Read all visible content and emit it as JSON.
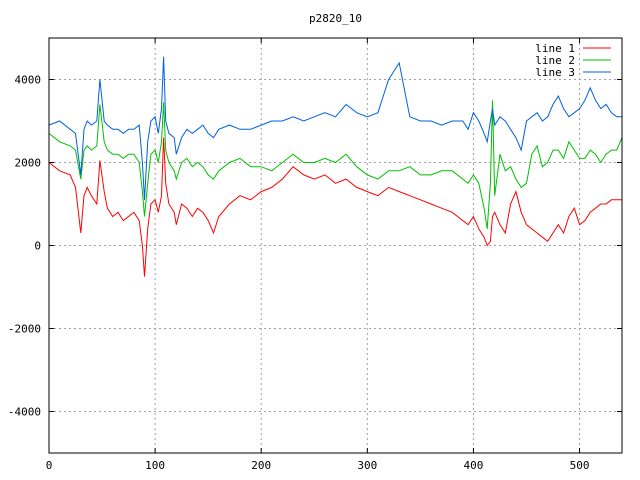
{
  "chart_data": {
    "type": "line",
    "title": "p2820_10",
    "xlabel": "",
    "ylabel": "",
    "xlim": [
      0,
      540
    ],
    "ylim": [
      -5000,
      5000
    ],
    "xticks": [
      0,
      100,
      200,
      300,
      400,
      500
    ],
    "yticks": [
      -4000,
      -2000,
      0,
      2000,
      4000
    ],
    "grid": true,
    "legend_position": "top-right",
    "series": [
      {
        "name": "line 1",
        "color": "#ff0000",
        "x": [
          0,
          10,
          20,
          25,
          30,
          33,
          36,
          40,
          45,
          48,
          52,
          55,
          60,
          65,
          70,
          75,
          80,
          85,
          88,
          90,
          93,
          96,
          100,
          103,
          106,
          108,
          110,
          113,
          118,
          120,
          125,
          130,
          135,
          140,
          145,
          150,
          155,
          160,
          170,
          180,
          190,
          200,
          210,
          220,
          230,
          240,
          250,
          260,
          270,
          280,
          290,
          300,
          310,
          320,
          330,
          340,
          350,
          360,
          370,
          380,
          390,
          395,
          400,
          405,
          410,
          413,
          416,
          418,
          420,
          425,
          430,
          435,
          440,
          445,
          450,
          455,
          460,
          465,
          470,
          475,
          480,
          485,
          490,
          495,
          500,
          505,
          510,
          515,
          520,
          525,
          530,
          535,
          540
        ],
        "values": [
          2000,
          1800,
          1700,
          1400,
          300,
          1200,
          1400,
          1200,
          1000,
          2050,
          1300,
          900,
          700,
          800,
          600,
          700,
          800,
          600,
          0,
          -750,
          400,
          1000,
          1100,
          800,
          1200,
          2600,
          1500,
          1000,
          800,
          500,
          1000,
          900,
          700,
          900,
          800,
          600,
          300,
          700,
          1000,
          1200,
          1100,
          1300,
          1400,
          1600,
          1900,
          1700,
          1600,
          1700,
          1500,
          1600,
          1400,
          1300,
          1200,
          1400,
          1300,
          1200,
          1100,
          1000,
          900,
          800,
          600,
          500,
          700,
          400,
          200,
          0,
          100,
          700,
          800,
          500,
          300,
          1000,
          1300,
          800,
          500,
          400,
          300,
          200,
          100,
          300,
          500,
          300,
          700,
          900,
          500,
          600,
          800,
          900,
          1000,
          1000,
          1100,
          1100,
          1100
        ]
      },
      {
        "name": "line 2",
        "color": "#00c000",
        "x": [
          0,
          10,
          20,
          25,
          30,
          33,
          36,
          40,
          45,
          48,
          52,
          55,
          60,
          65,
          70,
          75,
          80,
          85,
          88,
          90,
          93,
          96,
          100,
          103,
          106,
          108,
          110,
          113,
          118,
          120,
          125,
          130,
          135,
          140,
          145,
          150,
          155,
          160,
          170,
          180,
          190,
          200,
          210,
          220,
          230,
          240,
          250,
          260,
          270,
          280,
          290,
          300,
          310,
          320,
          330,
          340,
          350,
          360,
          370,
          380,
          390,
          395,
          400,
          405,
          410,
          413,
          416,
          418,
          420,
          425,
          430,
          435,
          440,
          445,
          450,
          455,
          460,
          465,
          470,
          475,
          480,
          485,
          490,
          495,
          500,
          505,
          510,
          515,
          520,
          525,
          530,
          535,
          540
        ],
        "values": [
          2700,
          2500,
          2400,
          2300,
          1600,
          2300,
          2400,
          2300,
          2400,
          3400,
          2500,
          2300,
          2200,
          2200,
          2100,
          2200,
          2200,
          2000,
          1300,
          700,
          1500,
          2200,
          2300,
          2000,
          2500,
          3450,
          2300,
          2000,
          1800,
          1600,
          2000,
          2100,
          1900,
          2000,
          1900,
          1700,
          1600,
          1800,
          2000,
          2100,
          1900,
          1900,
          1800,
          2000,
          2200,
          2000,
          2000,
          2100,
          2000,
          2200,
          1900,
          1700,
          1600,
          1800,
          1800,
          1900,
          1700,
          1700,
          1800,
          1800,
          1600,
          1500,
          1700,
          1500,
          900,
          400,
          1500,
          3500,
          1200,
          2200,
          1800,
          1900,
          1600,
          1400,
          1500,
          2200,
          2400,
          1900,
          2000,
          2300,
          2300,
          2100,
          2500,
          2300,
          2100,
          2100,
          2300,
          2200,
          2000,
          2200,
          2300,
          2300,
          2600
        ]
      },
      {
        "name": "line 3",
        "color": "#0060e0",
        "x": [
          0,
          10,
          20,
          25,
          30,
          33,
          36,
          40,
          45,
          48,
          52,
          55,
          60,
          65,
          70,
          75,
          80,
          85,
          88,
          90,
          93,
          96,
          100,
          103,
          106,
          108,
          110,
          113,
          118,
          120,
          125,
          130,
          135,
          140,
          145,
          150,
          155,
          160,
          170,
          180,
          190,
          200,
          210,
          220,
          230,
          240,
          250,
          260,
          270,
          280,
          290,
          300,
          310,
          320,
          330,
          340,
          350,
          360,
          370,
          380,
          390,
          395,
          400,
          405,
          410,
          413,
          416,
          418,
          420,
          425,
          430,
          435,
          440,
          445,
          450,
          455,
          460,
          465,
          470,
          475,
          480,
          485,
          490,
          495,
          500,
          505,
          510,
          515,
          520,
          525,
          530,
          535,
          540
        ],
        "values": [
          2900,
          3000,
          2800,
          2700,
          1700,
          2800,
          3000,
          2900,
          3000,
          4000,
          3000,
          2900,
          2800,
          2800,
          2700,
          2800,
          2800,
          2900,
          2000,
          1100,
          2500,
          3000,
          3100,
          2700,
          3300,
          4550,
          3000,
          2700,
          2600,
          2200,
          2600,
          2800,
          2700,
          2800,
          2900,
          2700,
          2600,
          2800,
          2900,
          2800,
          2800,
          2900,
          3000,
          3000,
          3100,
          3000,
          3100,
          3200,
          3100,
          3400,
          3200,
          3100,
          3200,
          4000,
          4400,
          3100,
          3000,
          3000,
          2900,
          3000,
          3000,
          2800,
          3200,
          3000,
          2700,
          2500,
          3000,
          3300,
          2900,
          3100,
          3000,
          2800,
          2600,
          2300,
          3000,
          3100,
          3200,
          3000,
          3100,
          3400,
          3600,
          3300,
          3100,
          3200,
          3300,
          3500,
          3800,
          3500,
          3300,
          3400,
          3200,
          3100,
          3100
        ]
      }
    ]
  }
}
